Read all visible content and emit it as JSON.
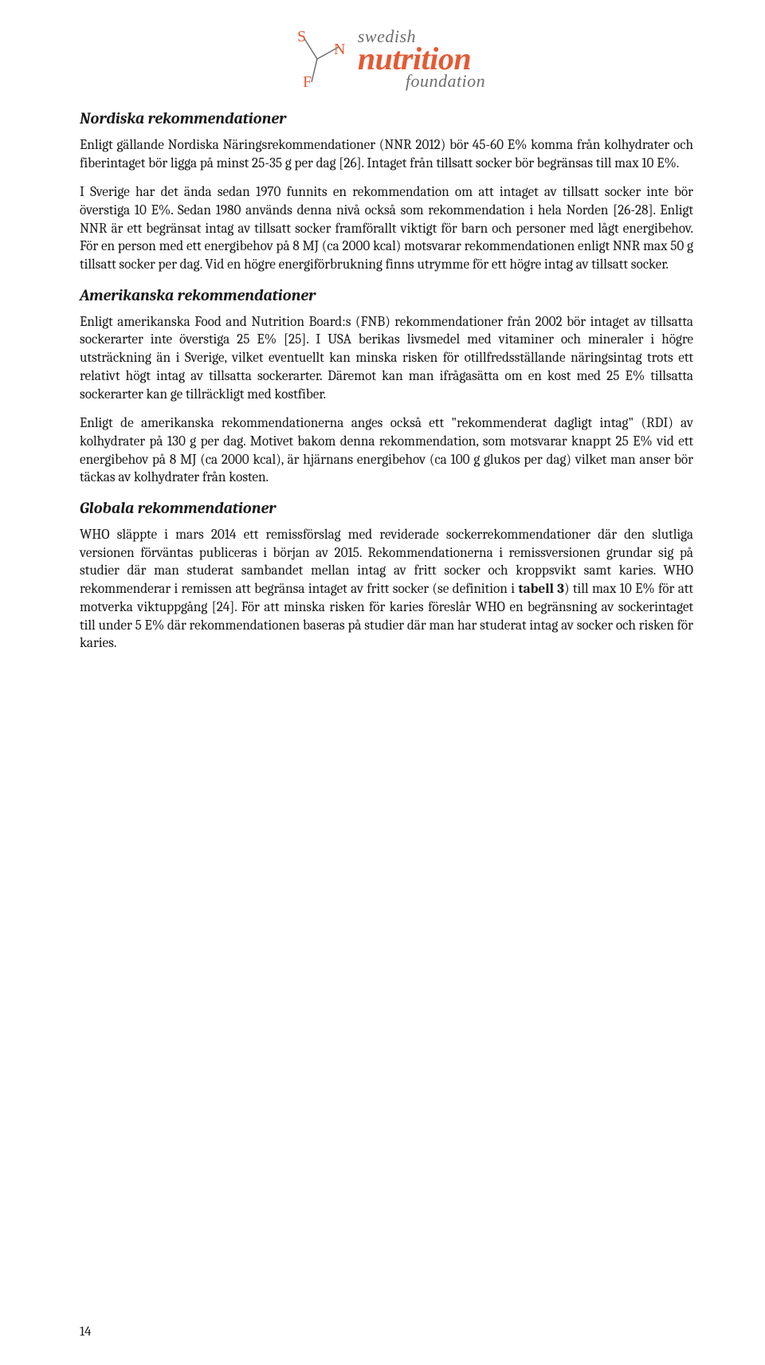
{
  "logo": {
    "swedish": "swedish",
    "nutrition": "nutrition",
    "foundation": "foundation",
    "letters": [
      "S",
      "N",
      "F"
    ],
    "brand_color": "#e35b34",
    "muted_color": "#6e6e6e",
    "line_color": "#6e6e6e"
  },
  "sections": [
    {
      "heading": "Nordiska rekommendationer",
      "paragraphs": [
        "Enligt gällande Nordiska Näringsrekommendationer (NNR 2012) bör 45-60 E% komma från kolhydrater och fiberintaget bör ligga på minst 25-35 g per dag [26]. Intaget från tillsatt socker bör begränsas till max 10 E%.",
        "I Sverige har det ända sedan 1970 funnits en rekommendation om att intaget av tillsatt socker inte bör överstiga 10 E%. Sedan 1980 används denna nivå också som rekommendation i hela Norden [26-28]. Enligt NNR är ett begränsat intag av tillsatt socker framförallt viktigt för barn och personer med lågt energibehov. För en person med ett energibehov på 8 MJ (ca 2000 kcal) motsvarar rekommendationen enligt NNR max 50 g tillsatt socker per dag. Vid en högre energiförbrukning finns utrymme för ett högre intag av tillsatt socker."
      ]
    },
    {
      "heading": "Amerikanska rekommendationer",
      "paragraphs": [
        "Enligt amerikanska Food and Nutrition Board:s (FNB) rekommendationer från 2002 bör intaget av tillsatta sockerarter inte överstiga 25 E% [25]. I USA berikas livsmedel med vitaminer och mineraler i högre utsträckning än i Sverige, vilket eventuellt kan minska risken för otillfredsställande näringsintag trots ett relativt högt intag av tillsatta sockerarter. Däremot kan man ifrågasätta om en kost med 25 E% tillsatta sockerarter kan ge tillräckligt med kostfiber.",
        "Enligt de amerikanska rekommendationerna anges också ett \"rekommenderat dagligt intag\" (RDI) av kolhydrater på 130 g per dag. Motivet bakom denna rekommendation, som motsvarar knappt 25 E% vid ett energibehov på 8 MJ (ca 2000 kcal), är hjärnans energibehov (ca 100 g glukos per dag) vilket man anser bör täckas av kolhydrater från kosten."
      ]
    },
    {
      "heading": "Globala rekommendationer",
      "paragraphs": [
        "WHO släppte i mars 2014 ett remissförslag med reviderade sockerrekommendationer där den slutliga versionen förväntas publiceras i början av 2015. Rekommendationerna i remissversionen grundar sig på studier där man studerat sambandet mellan intag av fritt socker och kroppsvikt samt karies. WHO rekommenderar i remissen att begränsa intaget av fritt socker (se definition i <strong>tabell 3</strong>) till max 10 E% för att motverka viktuppgång [24]. För att minska risken för karies föreslår WHO en begränsning av sockerintaget till under 5 E% där rekommendationen baseras på studier där man har studerat intag av socker och risken för karies."
      ]
    }
  ],
  "page_number": "14",
  "typography": {
    "body_fontsize": 17.2,
    "heading_fontsize": 20,
    "text_color": "#1a1a1a",
    "background_color": "#ffffff"
  }
}
